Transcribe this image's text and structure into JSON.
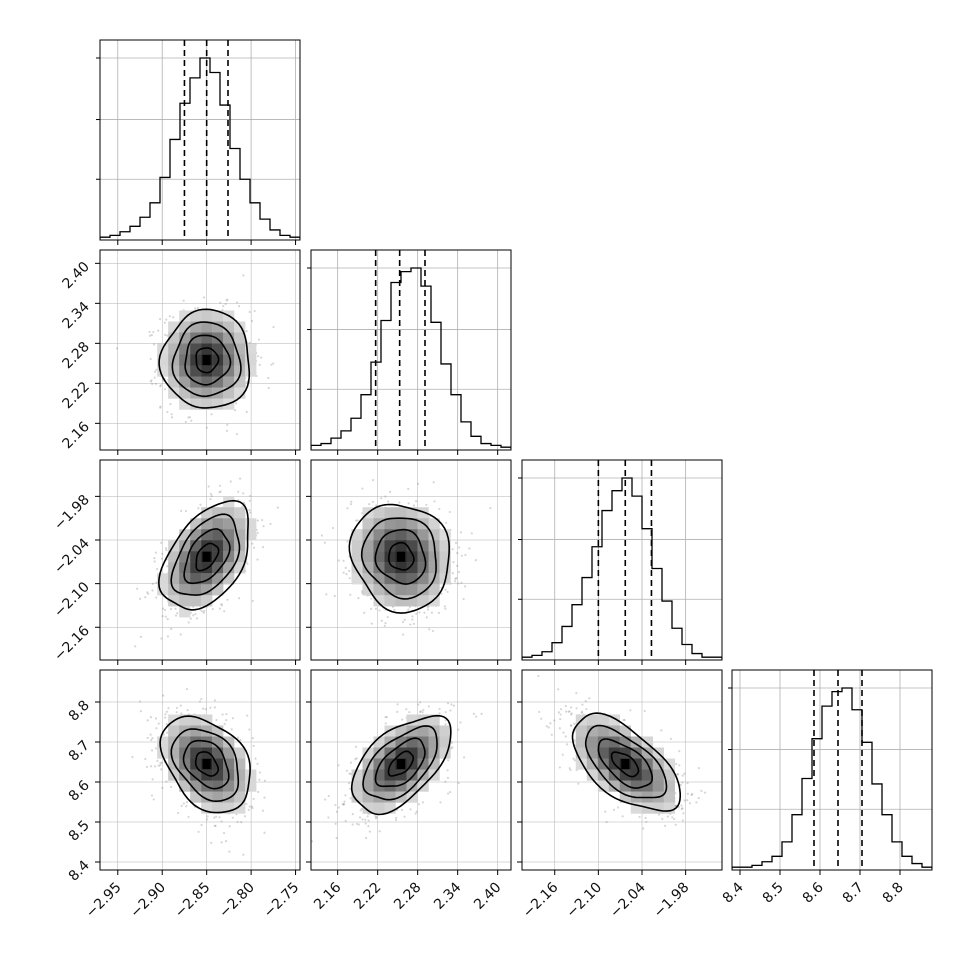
{
  "chart_data": {
    "type": "corner",
    "grid": true,
    "legend": "none",
    "parameters": [
      {
        "range": [
          -2.97,
          -2.745
        ],
        "ticks": [
          -2.95,
          -2.9,
          -2.85,
          -2.8,
          -2.75
        ],
        "tick_labels": [
          "−2.95",
          "−2.90",
          "−2.85",
          "−2.80",
          "−2.75"
        ],
        "quantiles": [
          -2.875,
          -2.85,
          -2.826
        ],
        "histogram": [
          0.01,
          0.02,
          0.04,
          0.07,
          0.12,
          0.2,
          0.34,
          0.55,
          0.75,
          0.89,
          1.0,
          0.92,
          0.74,
          0.5,
          0.33,
          0.2,
          0.11,
          0.05,
          0.02,
          0.01
        ],
        "mean": -2.85,
        "sd": 0.025
      },
      {
        "range": [
          2.12,
          2.42
        ],
        "ticks": [
          2.16,
          2.22,
          2.28,
          2.34,
          2.4
        ],
        "tick_labels": [
          "2.16",
          "2.22",
          "2.28",
          "2.34",
          "2.40"
        ],
        "quantiles": [
          2.217,
          2.253,
          2.291
        ],
        "histogram": [
          0.02,
          0.03,
          0.06,
          0.1,
          0.17,
          0.3,
          0.48,
          0.71,
          0.92,
          0.98,
          1.0,
          0.9,
          0.7,
          0.47,
          0.3,
          0.15,
          0.07,
          0.03,
          0.02,
          0.01
        ],
        "mean": 2.255,
        "sd": 0.037
      },
      {
        "range": [
          -2.205,
          -1.93
        ],
        "ticks": [
          -2.16,
          -2.1,
          -2.04,
          -1.98
        ],
        "tick_labels": [
          "−2.16",
          "−2.10",
          "−2.04",
          "−1.98"
        ],
        "quantiles": [
          -2.1,
          -2.063,
          -2.027
        ],
        "histogram": [
          0.01,
          0.02,
          0.04,
          0.09,
          0.18,
          0.3,
          0.45,
          0.62,
          0.82,
          0.93,
          1.0,
          0.9,
          0.72,
          0.5,
          0.32,
          0.17,
          0.08,
          0.03,
          0.01,
          0.01
        ],
        "mean": -2.063,
        "sd": 0.037
      },
      {
        "range": [
          8.38,
          8.88
        ],
        "ticks": [
          8.4,
          8.5,
          8.6,
          8.7,
          8.8
        ],
        "tick_labels": [
          "8.4",
          "8.5",
          "8.6",
          "8.7",
          "8.8"
        ],
        "quantiles": [
          8.585,
          8.645,
          8.705
        ],
        "histogram": [
          0.01,
          0.01,
          0.02,
          0.04,
          0.07,
          0.15,
          0.3,
          0.5,
          0.72,
          0.9,
          0.98,
          1.0,
          0.88,
          0.7,
          0.47,
          0.3,
          0.15,
          0.07,
          0.03,
          0.01
        ],
        "mean": 8.645,
        "sd": 0.06
      }
    ],
    "correlations": [
      {
        "pair": [
          1,
          0
        ],
        "rho": 0.0
      },
      {
        "pair": [
          2,
          0
        ],
        "rho": 0.45
      },
      {
        "pair": [
          2,
          1
        ],
        "rho": -0.1
      },
      {
        "pair": [
          3,
          0
        ],
        "rho": -0.35
      },
      {
        "pair": [
          3,
          1
        ],
        "rho": 0.55
      },
      {
        "pair": [
          3,
          2
        ],
        "rho": -0.6
      }
    ],
    "contour_levels_sigma": [
      0.5,
      1.0,
      1.5,
      2.0
    ]
  },
  "colors": {
    "line": "#000000",
    "grid": "#b0b0b0",
    "points": "#8a8a8a"
  }
}
